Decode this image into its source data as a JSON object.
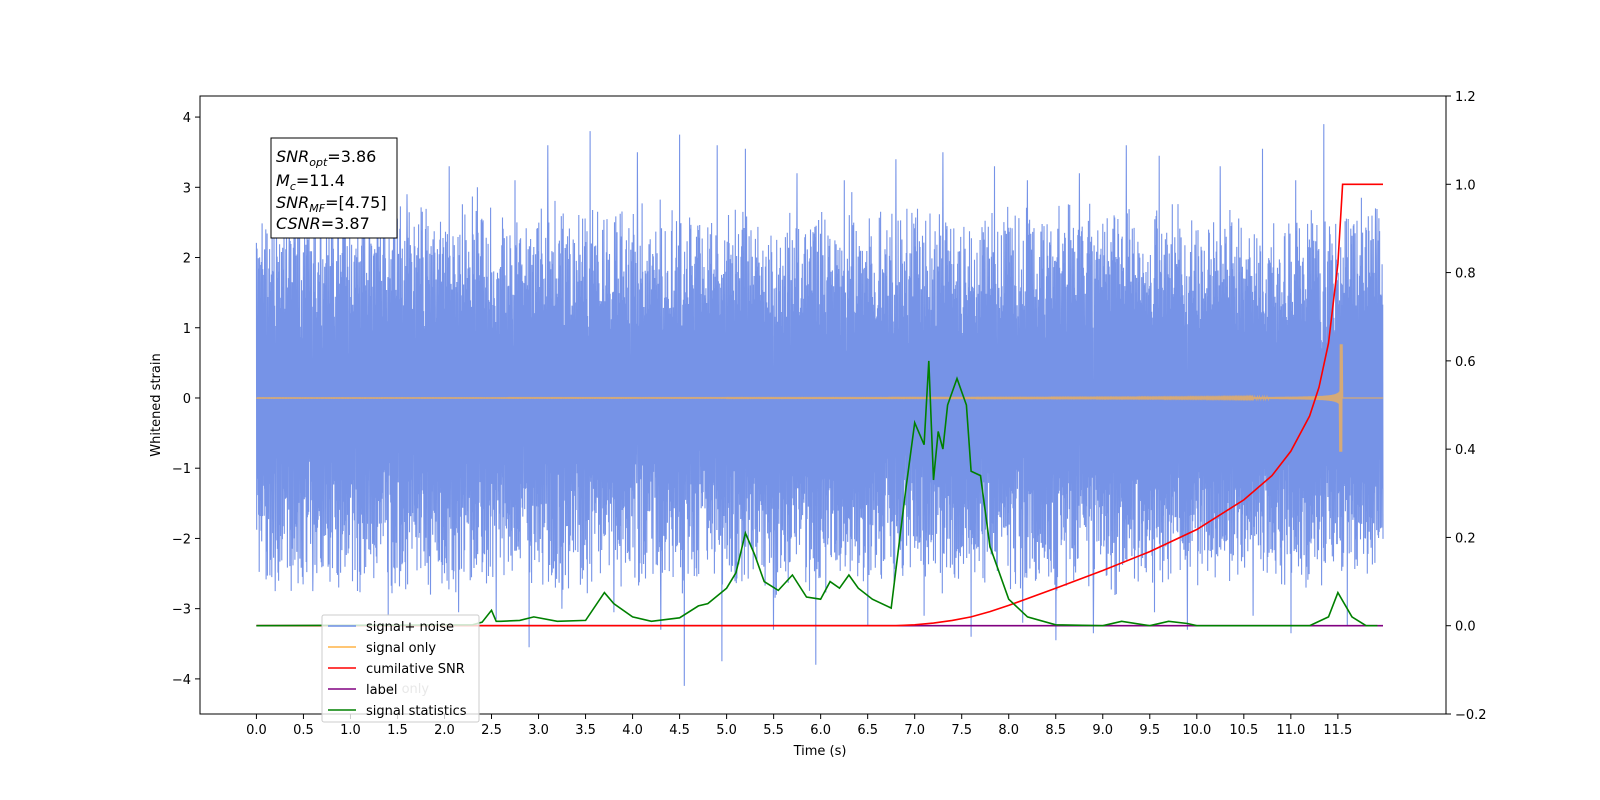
{
  "chart_data": {
    "type": "line",
    "xlabel": "Time (s)",
    "ylabel": "Whitened strain",
    "xlim": [
      -0.6,
      12.65
    ],
    "ylim": [
      -4.5,
      4.3
    ],
    "y2lim": [
      -0.2,
      1.2
    ],
    "x_ticks": [
      "0.0",
      "0.5",
      "1.0",
      "1.5",
      "2.0",
      "2.5",
      "3.0",
      "3.5",
      "4.0",
      "4.5",
      "5.0",
      "5.5",
      "6.0",
      "6.5",
      "7.0",
      "7.5",
      "8.0",
      "8.5",
      "9.0",
      "9.5",
      "10.0",
      "10.5",
      "11.0",
      "11.5"
    ],
    "y_ticks": [
      "4",
      "3",
      "2",
      "1",
      "0",
      "−1",
      "−2",
      "−3",
      "−4"
    ],
    "y2_ticks": [
      "1.2",
      "1.0",
      "0.8",
      "0.6",
      "0.4",
      "0.2",
      "0.0",
      "−0.2"
    ],
    "stats_box": {
      "snr_opt": {
        "label": "SNR",
        "sub": "opt",
        "value": "=3.86"
      },
      "mc": {
        "label": "M",
        "sub": "c",
        "value": "=11.4"
      },
      "snr_mf": {
        "label": "SNR",
        "sub": "MF",
        "value": "=[4.75]"
      },
      "csnr": {
        "label": "CSNR",
        "value": "=3.87"
      }
    },
    "legend": {
      "placement": "lower-left",
      "entries": [
        "signal+ noise",
        "signal only",
        "cumilative SNR",
        "label",
        "signal statistics"
      ],
      "hidden_entry": "label only"
    },
    "series": [
      {
        "name": "signal+ noise",
        "axis": "left",
        "color": "#6f8de6",
        "x_range": [
          0.0,
          11.98
        ],
        "typical_amplitude": 1.9,
        "spikes": [
          [
            0.1,
            2.4
          ],
          [
            0.2,
            -2.75
          ],
          [
            0.35,
            2.7
          ],
          [
            0.6,
            -2.75
          ],
          [
            0.8,
            2.95
          ],
          [
            1.05,
            -2.45
          ],
          [
            1.2,
            3.4
          ],
          [
            1.4,
            -3.1
          ],
          [
            1.6,
            2.9
          ],
          [
            1.85,
            -2.8
          ],
          [
            2.05,
            3.3
          ],
          [
            2.15,
            -3.05
          ],
          [
            2.35,
            3.0
          ],
          [
            2.55,
            -3.15
          ],
          [
            2.75,
            3.1
          ],
          [
            2.9,
            -3.55
          ],
          [
            3.1,
            3.6
          ],
          [
            3.25,
            -3.0
          ],
          [
            3.55,
            3.8
          ],
          [
            3.8,
            -3.05
          ],
          [
            4.05,
            3.5
          ],
          [
            4.3,
            -3.3
          ],
          [
            4.5,
            3.75
          ],
          [
            4.55,
            -4.1
          ],
          [
            4.9,
            3.6
          ],
          [
            4.95,
            -3.75
          ],
          [
            5.2,
            3.55
          ],
          [
            5.5,
            -3.3
          ],
          [
            5.75,
            3.2
          ],
          [
            5.95,
            -3.8
          ],
          [
            6.25,
            3.1
          ],
          [
            6.5,
            -3.25
          ],
          [
            6.8,
            3.4
          ],
          [
            7.1,
            -3.1
          ],
          [
            7.3,
            3.5
          ],
          [
            7.6,
            -3.4
          ],
          [
            7.85,
            3.3
          ],
          [
            8.15,
            -3.2
          ],
          [
            8.2,
            3.1
          ],
          [
            8.5,
            -3.45
          ],
          [
            8.75,
            3.2
          ],
          [
            8.9,
            -3.35
          ],
          [
            9.25,
            3.6
          ],
          [
            9.55,
            -3.05
          ],
          [
            9.6,
            3.45
          ],
          [
            9.9,
            -3.3
          ],
          [
            10.25,
            3.3
          ],
          [
            10.6,
            -3.1
          ],
          [
            10.7,
            3.55
          ],
          [
            11.0,
            -3.35
          ],
          [
            11.05,
            3.1
          ],
          [
            11.35,
            3.9
          ],
          [
            11.6,
            -3.25
          ],
          [
            11.75,
            2.85
          ],
          [
            11.9,
            2.7
          ]
        ]
      },
      {
        "name": "signal only",
        "axis": "left",
        "color": "#ffb347",
        "x_range": [
          0.0,
          11.98
        ],
        "merger_time": 11.55,
        "peak_amplitude": 0.85
      },
      {
        "name": "cumilative SNR",
        "axis": "right",
        "color": "#ff0000",
        "x": [
          0.0,
          6.8,
          7.0,
          7.2,
          7.4,
          7.6,
          7.8,
          8.0,
          8.5,
          9.0,
          9.5,
          10.0,
          10.5,
          10.8,
          11.0,
          11.2,
          11.3,
          11.4,
          11.5,
          11.55,
          11.98
        ],
        "y": [
          0.0,
          0.0,
          0.002,
          0.006,
          0.012,
          0.02,
          0.032,
          0.046,
          0.085,
          0.125,
          0.168,
          0.218,
          0.285,
          0.34,
          0.395,
          0.475,
          0.54,
          0.64,
          0.82,
          1.0,
          1.0
        ]
      },
      {
        "name": "label",
        "axis": "right",
        "color": "#800080",
        "x": [
          0.0,
          11.98
        ],
        "y": [
          0.0,
          0.0
        ]
      },
      {
        "name": "signal statistics",
        "axis": "right",
        "color": "#008000",
        "x": [
          0.0,
          2.3,
          2.4,
          2.5,
          2.55,
          2.6,
          2.8,
          2.95,
          3.2,
          3.5,
          3.7,
          3.8,
          4.0,
          4.2,
          4.5,
          4.7,
          4.8,
          5.0,
          5.1,
          5.2,
          5.3,
          5.4,
          5.55,
          5.7,
          5.85,
          6.0,
          6.1,
          6.2,
          6.3,
          6.4,
          6.55,
          6.75,
          6.9,
          7.0,
          7.1,
          7.15,
          7.2,
          7.25,
          7.3,
          7.35,
          7.45,
          7.55,
          7.6,
          7.7,
          7.8,
          8.0,
          8.2,
          8.5,
          9.0,
          9.2,
          9.5,
          9.7,
          9.9,
          10.0,
          11.2,
          11.4,
          11.5,
          11.65,
          11.8,
          11.92
        ],
        "y": [
          0.0,
          0.002,
          0.008,
          0.035,
          0.01,
          0.01,
          0.012,
          0.02,
          0.01,
          0.012,
          0.075,
          0.05,
          0.02,
          0.01,
          0.018,
          0.045,
          0.05,
          0.085,
          0.12,
          0.21,
          0.16,
          0.1,
          0.08,
          0.115,
          0.065,
          0.06,
          0.1,
          0.085,
          0.115,
          0.085,
          0.06,
          0.04,
          0.3,
          0.46,
          0.41,
          0.6,
          0.33,
          0.44,
          0.4,
          0.5,
          0.56,
          0.5,
          0.35,
          0.34,
          0.18,
          0.06,
          0.02,
          0.002,
          0.0,
          0.01,
          0.0,
          0.01,
          0.005,
          0.0,
          0.0,
          0.02,
          0.075,
          0.02,
          0.0,
          0.0
        ]
      }
    ]
  }
}
